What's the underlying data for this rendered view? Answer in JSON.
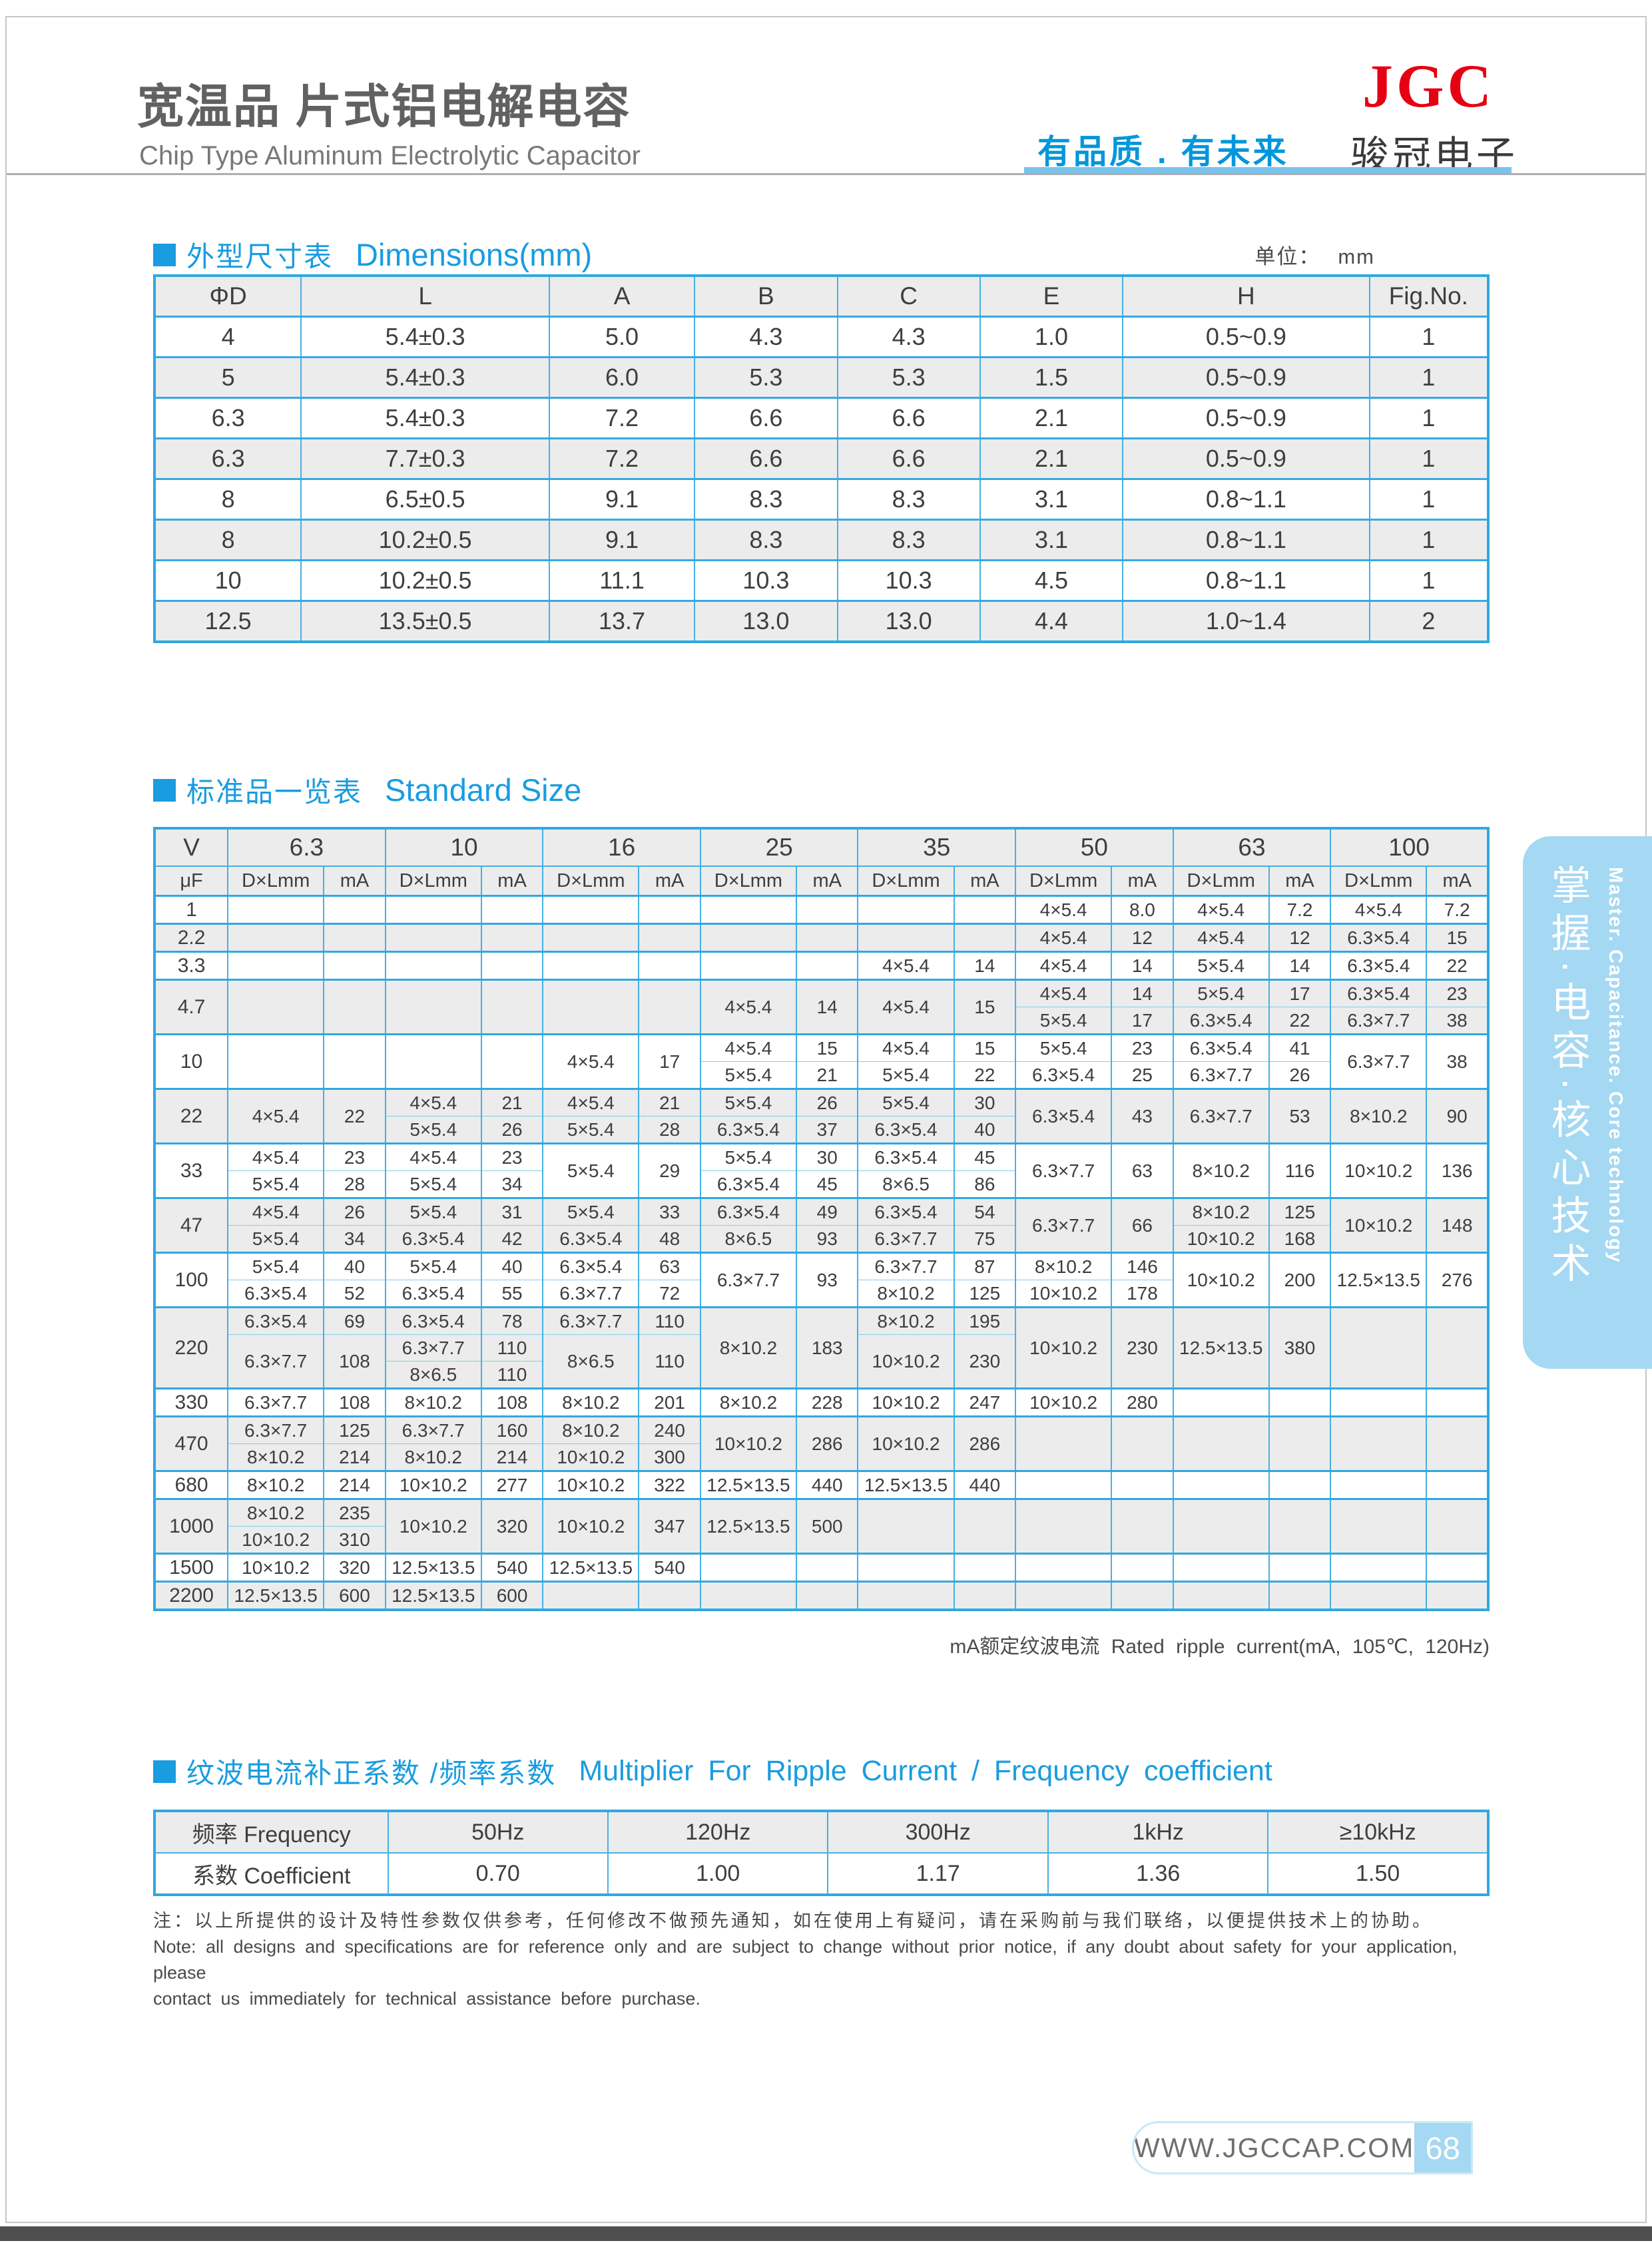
{
  "header": {
    "title_cn": "宽温品 片式铝电解电容",
    "title_en": "Chip Type Aluminum Electrolytic Capacitor",
    "slogan": "有品质 . 有未来",
    "logo": "JGC",
    "company": "骏冠电子"
  },
  "colors": {
    "accent_blue": "#199CE0",
    "border_blue": "#47B0E3",
    "light_blue": "#A5D8F2",
    "logo_red": "#E60012",
    "row_grey": "#ECECEC"
  },
  "dim_section": {
    "title_cn": "外型尺寸表",
    "title_en": "Dimensions(mm)",
    "unit_label": "单位：",
    "unit_value": "mm",
    "columns": [
      "ΦD",
      "L",
      "A",
      "B",
      "C",
      "E",
      "H",
      "Fig.No."
    ],
    "rows": [
      [
        "4",
        "5.4±0.3",
        "5.0",
        "4.3",
        "4.3",
        "1.0",
        "0.5~0.9",
        "1"
      ],
      [
        "5",
        "5.4±0.3",
        "6.0",
        "5.3",
        "5.3",
        "1.5",
        "0.5~0.9",
        "1"
      ],
      [
        "6.3",
        "5.4±0.3",
        "7.2",
        "6.6",
        "6.6",
        "2.1",
        "0.5~0.9",
        "1"
      ],
      [
        "6.3",
        "7.7±0.3",
        "7.2",
        "6.6",
        "6.6",
        "2.1",
        "0.5~0.9",
        "1"
      ],
      [
        "8",
        "6.5±0.5",
        "9.1",
        "8.3",
        "8.3",
        "3.1",
        "0.8~1.1",
        "1"
      ],
      [
        "8",
        "10.2±0.5",
        "9.1",
        "8.3",
        "8.3",
        "3.1",
        "0.8~1.1",
        "1"
      ],
      [
        "10",
        "10.2±0.5",
        "11.1",
        "10.3",
        "10.3",
        "4.5",
        "0.8~1.1",
        "1"
      ],
      [
        "12.5",
        "13.5±0.5",
        "13.7",
        "13.0",
        "13.0",
        "4.4",
        "1.0~1.4",
        "2"
      ]
    ]
  },
  "std_section": {
    "title_cn": "标准品一览表",
    "title_en": "Standard Size",
    "v_label": "V",
    "uf_label": "μF",
    "d_label": "D×Lmm",
    "ma_label": "mA",
    "voltages": [
      "6.3",
      "10",
      "16",
      "25",
      "35",
      "50",
      "63",
      "100"
    ],
    "groups": [
      {
        "uf": "1",
        "rows": 1,
        "cols": [
          [],
          [],
          [],
          [],
          [],
          [
            [
              "4×5.4",
              "8.0",
              1
            ]
          ],
          [
            [
              "4×5.4",
              "7.2",
              1
            ]
          ],
          [
            [
              "4×5.4",
              "7.2",
              1
            ]
          ]
        ]
      },
      {
        "uf": "2.2",
        "rows": 1,
        "cols": [
          [],
          [],
          [],
          [],
          [],
          [
            [
              "4×5.4",
              "12",
              1
            ]
          ],
          [
            [
              "4×5.4",
              "12",
              1
            ]
          ],
          [
            [
              "6.3×5.4",
              "15",
              1
            ]
          ]
        ]
      },
      {
        "uf": "3.3",
        "rows": 1,
        "cols": [
          [],
          [],
          [],
          [],
          [
            [
              "4×5.4",
              "14",
              1
            ]
          ],
          [
            [
              "4×5.4",
              "14",
              1
            ]
          ],
          [
            [
              "5×5.4",
              "14",
              1
            ]
          ],
          [
            [
              "6.3×5.4",
              "22",
              1
            ]
          ]
        ]
      },
      {
        "uf": "4.7",
        "rows": 2,
        "cols": [
          [],
          [],
          [],
          [
            [
              "4×5.4",
              "14",
              2
            ]
          ],
          [
            [
              "4×5.4",
              "15",
              2
            ]
          ],
          [
            [
              "4×5.4",
              "14",
              1
            ],
            [
              "5×5.4",
              "17",
              1
            ]
          ],
          [
            [
              "5×5.4",
              "17",
              1
            ],
            [
              "6.3×5.4",
              "22",
              1
            ]
          ],
          [
            [
              "6.3×5.4",
              "23",
              1
            ],
            [
              "6.3×7.7",
              "38",
              1
            ]
          ]
        ]
      },
      {
        "uf": "10",
        "rows": 2,
        "cols": [
          [],
          [],
          [
            [
              "4×5.4",
              "17",
              2
            ]
          ],
          [
            [
              "4×5.4",
              "15",
              1
            ],
            [
              "5×5.4",
              "21",
              1
            ]
          ],
          [
            [
              "4×5.4",
              "15",
              1
            ],
            [
              "5×5.4",
              "22",
              1
            ]
          ],
          [
            [
              "5×5.4",
              "23",
              1
            ],
            [
              "6.3×5.4",
              "25",
              1
            ]
          ],
          [
            [
              "6.3×5.4",
              "41",
              1
            ],
            [
              "6.3×7.7",
              "26",
              1
            ]
          ],
          [
            [
              "6.3×7.7",
              "38",
              2
            ]
          ]
        ]
      },
      {
        "uf": "22",
        "rows": 2,
        "cols": [
          [
            [
              "4×5.4",
              "22",
              2
            ]
          ],
          [
            [
              "4×5.4",
              "21",
              1
            ],
            [
              "5×5.4",
              "26",
              1
            ]
          ],
          [
            [
              "4×5.4",
              "21",
              1
            ],
            [
              "5×5.4",
              "28",
              1
            ]
          ],
          [
            [
              "5×5.4",
              "26",
              1
            ],
            [
              "6.3×5.4",
              "37",
              1
            ]
          ],
          [
            [
              "5×5.4",
              "30",
              1
            ],
            [
              "6.3×5.4",
              "40",
              1
            ]
          ],
          [
            [
              "6.3×5.4",
              "43",
              2
            ]
          ],
          [
            [
              "6.3×7.7",
              "53",
              2
            ]
          ],
          [
            [
              "8×10.2",
              "90",
              2
            ]
          ]
        ]
      },
      {
        "uf": "33",
        "rows": 2,
        "cols": [
          [
            [
              "4×5.4",
              "23",
              1
            ],
            [
              "5×5.4",
              "28",
              1
            ]
          ],
          [
            [
              "4×5.4",
              "23",
              1
            ],
            [
              "5×5.4",
              "34",
              1
            ]
          ],
          [
            [
              "5×5.4",
              "29",
              2
            ]
          ],
          [
            [
              "5×5.4",
              "30",
              1
            ],
            [
              "6.3×5.4",
              "45",
              1
            ]
          ],
          [
            [
              "6.3×5.4",
              "45",
              1
            ],
            [
              "8×6.5",
              "86",
              1
            ]
          ],
          [
            [
              "6.3×7.7",
              "63",
              2
            ]
          ],
          [
            [
              "8×10.2",
              "116",
              2
            ]
          ],
          [
            [
              "10×10.2",
              "136",
              2
            ]
          ]
        ]
      },
      {
        "uf": "47",
        "rows": 2,
        "cols": [
          [
            [
              "4×5.4",
              "26",
              1
            ],
            [
              "5×5.4",
              "34",
              1
            ]
          ],
          [
            [
              "5×5.4",
              "31",
              1
            ],
            [
              "6.3×5.4",
              "42",
              1
            ]
          ],
          [
            [
              "5×5.4",
              "33",
              1
            ],
            [
              "6.3×5.4",
              "48",
              1
            ]
          ],
          [
            [
              "6.3×5.4",
              "49",
              1
            ],
            [
              "8×6.5",
              "93",
              1
            ]
          ],
          [
            [
              "6.3×5.4",
              "54",
              1
            ],
            [
              "6.3×7.7",
              "75",
              1
            ]
          ],
          [
            [
              "6.3×7.7",
              "66",
              2
            ]
          ],
          [
            [
              "8×10.2",
              "125",
              1
            ],
            [
              "10×10.2",
              "168",
              1
            ]
          ],
          [
            [
              "10×10.2",
              "148",
              2
            ]
          ]
        ]
      },
      {
        "uf": "100",
        "rows": 2,
        "cols": [
          [
            [
              "5×5.4",
              "40",
              1
            ],
            [
              "6.3×5.4",
              "52",
              1
            ]
          ],
          [
            [
              "5×5.4",
              "40",
              1
            ],
            [
              "6.3×5.4",
              "55",
              1
            ]
          ],
          [
            [
              "6.3×5.4",
              "63",
              1
            ],
            [
              "6.3×7.7",
              "72",
              1
            ]
          ],
          [
            [
              "6.3×7.7",
              "93",
              2
            ]
          ],
          [
            [
              "6.3×7.7",
              "87",
              1
            ],
            [
              "8×10.2",
              "125",
              1
            ]
          ],
          [
            [
              "8×10.2",
              "146",
              1
            ],
            [
              "10×10.2",
              "178",
              1
            ]
          ],
          [
            [
              "10×10.2",
              "200",
              2
            ]
          ],
          [
            [
              "12.5×13.5",
              "276",
              2
            ]
          ]
        ]
      },
      {
        "uf": "220",
        "rows": 3,
        "cols": [
          [
            [
              "6.3×5.4",
              "69",
              1
            ],
            [
              "6.3×7.7",
              "108",
              2
            ]
          ],
          [
            [
              "6.3×5.4",
              "78",
              1
            ],
            [
              "6.3×7.7",
              "110",
              1
            ],
            [
              "8×6.5",
              "110",
              1
            ]
          ],
          [
            [
              "6.3×7.7",
              "110",
              1
            ],
            [
              "8×6.5",
              "110",
              2
            ]
          ],
          [
            [
              "8×10.2",
              "183",
              3
            ]
          ],
          [
            [
              "8×10.2",
              "195",
              1
            ],
            [
              "10×10.2",
              "230",
              2
            ]
          ],
          [
            [
              "10×10.2",
              "230",
              3
            ]
          ],
          [
            [
              "12.5×13.5",
              "380",
              3
            ]
          ],
          []
        ]
      },
      {
        "uf": "330",
        "rows": 1,
        "cols": [
          [
            [
              "6.3×7.7",
              "108",
              1
            ]
          ],
          [
            [
              "8×10.2",
              "108",
              1
            ]
          ],
          [
            [
              "8×10.2",
              "201",
              1
            ]
          ],
          [
            [
              "8×10.2",
              "228",
              1
            ]
          ],
          [
            [
              "10×10.2",
              "247",
              1
            ]
          ],
          [
            [
              "10×10.2",
              "280",
              1
            ]
          ],
          [],
          []
        ]
      },
      {
        "uf": "470",
        "rows": 2,
        "cols": [
          [
            [
              "6.3×7.7",
              "125",
              1
            ],
            [
              "8×10.2",
              "214",
              1
            ]
          ],
          [
            [
              "6.3×7.7",
              "160",
              1
            ],
            [
              "8×10.2",
              "214",
              1
            ]
          ],
          [
            [
              "8×10.2",
              "240",
              1
            ],
            [
              "10×10.2",
              "300",
              1
            ]
          ],
          [
            [
              "10×10.2",
              "286",
              2
            ]
          ],
          [
            [
              "10×10.2",
              "286",
              2
            ]
          ],
          [],
          [],
          []
        ]
      },
      {
        "uf": "680",
        "rows": 1,
        "cols": [
          [
            [
              "8×10.2",
              "214",
              1
            ]
          ],
          [
            [
              "10×10.2",
              "277",
              1
            ]
          ],
          [
            [
              "10×10.2",
              "322",
              1
            ]
          ],
          [
            [
              "12.5×13.5",
              "440",
              1
            ]
          ],
          [
            [
              "12.5×13.5",
              "440",
              1
            ]
          ],
          [],
          [],
          []
        ]
      },
      {
        "uf": "1000",
        "rows": 2,
        "cols": [
          [
            [
              "8×10.2",
              "235",
              1
            ],
            [
              "10×10.2",
              "310",
              1
            ]
          ],
          [
            [
              "10×10.2",
              "320",
              2
            ]
          ],
          [
            [
              "10×10.2",
              "347",
              2
            ]
          ],
          [
            [
              "12.5×13.5",
              "500",
              2
            ]
          ],
          [],
          [],
          [],
          []
        ]
      },
      {
        "uf": "1500",
        "rows": 1,
        "cols": [
          [
            [
              "10×10.2",
              "320",
              1
            ]
          ],
          [
            [
              "12.5×13.5",
              "540",
              1
            ]
          ],
          [
            [
              "12.5×13.5",
              "540",
              1
            ]
          ],
          [],
          [],
          [],
          [],
          []
        ]
      },
      {
        "uf": "2200",
        "rows": 1,
        "cols": [
          [
            [
              "12.5×13.5",
              "600",
              1
            ]
          ],
          [
            [
              "12.5×13.5",
              "600",
              1
            ]
          ],
          [],
          [],
          [],
          [],
          [],
          []
        ]
      }
    ],
    "ripple_note": "mA额定纹波电流 Rated ripple current(mA, 105℃, 120Hz)"
  },
  "freq_section": {
    "title_cn": "纹波电流补正系数 /频率系数",
    "title_en": "Multiplier For Ripple Current / Frequency coefficient",
    "rows": [
      [
        "频率 Frequency",
        "50Hz",
        "120Hz",
        "300Hz",
        "1kHz",
        "≥10kHz"
      ],
      [
        "系数 Coefficient",
        "0.70",
        "1.00",
        "1.17",
        "1.36",
        "1.50"
      ]
    ]
  },
  "notes": {
    "cn": "注：以上所提供的设计及特性参数仅供参考，任何修改不做预先通知，如在使用上有疑问，请在采购前与我们联络，以便提供技术上的协助。",
    "en1": "Note: all designs and specifications are for reference only and are subject to change without prior notice, if any doubt about safety for your application, please",
    "en2": "contact us immediately for technical assistance before purchase."
  },
  "sidebar": {
    "text_cn": "掌握·电容·核心技术",
    "text_en": "Master. Capacitance. Core technology"
  },
  "footer": {
    "website": "WWW.JGCCAP.COM",
    "page_number": "68"
  }
}
